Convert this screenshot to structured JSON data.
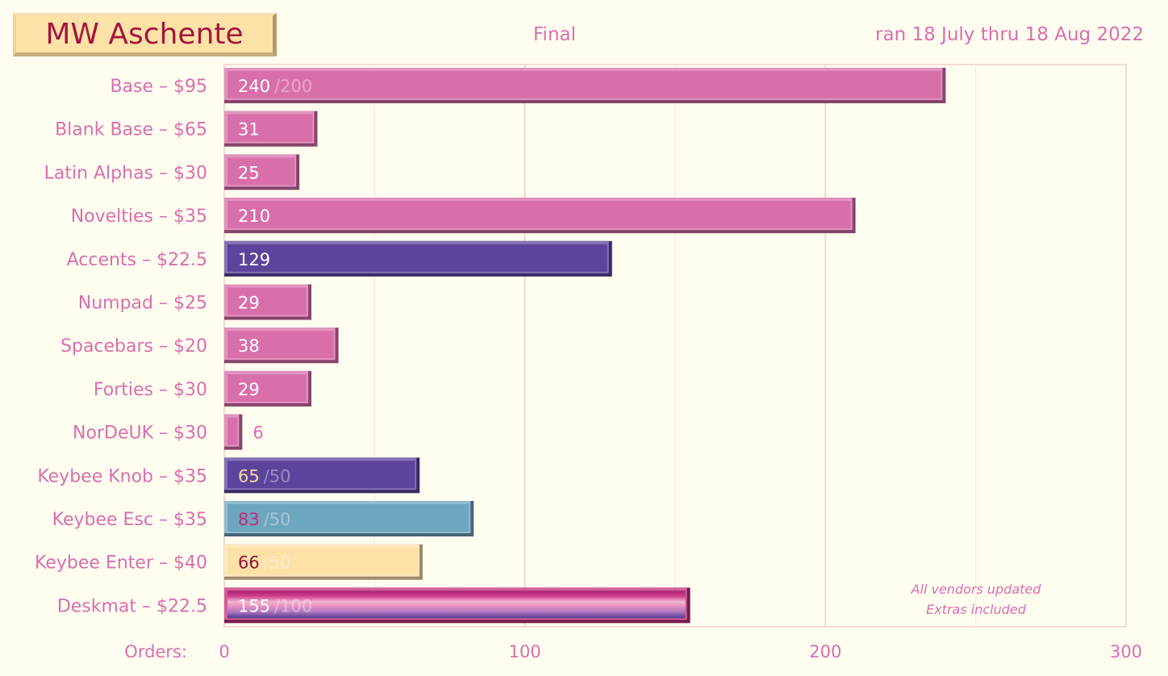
{
  "header": {
    "title": "MW Aschente",
    "status": "Final",
    "run_dates": "ran 18 July thru 18 Aug 2022"
  },
  "chart_data": {
    "type": "bar",
    "orientation": "horizontal",
    "title": "MW Aschente",
    "xlabel": "Orders:",
    "xlim": [
      0,
      300
    ],
    "xticks": [
      0,
      100,
      200,
      300
    ],
    "grid": true,
    "categories": [
      "Base – $95",
      "Blank Base – $65",
      "Latin Alphas – $30",
      "Novelties – $35",
      "Accents – $22.5",
      "Numpad – $25",
      "Spacebars – $20",
      "Forties – $30",
      "NorDeUK – $30",
      "Keybee Knob – $35",
      "Keybee Esc – $35",
      "Keybee Enter – $40",
      "Deskmat – $22.5"
    ],
    "values": [
      240,
      31,
      25,
      210,
      129,
      29,
      38,
      29,
      6,
      65,
      83,
      66,
      155
    ],
    "value_labels": [
      "240",
      "31",
      "25",
      "210",
      "129",
      "29",
      "38",
      "29",
      "6",
      "65",
      "83",
      "66",
      "155"
    ],
    "minimums": [
      "/200",
      "",
      "",
      "",
      "",
      "",
      "",
      "",
      "",
      "/50",
      "/50",
      "/50",
      "/100"
    ],
    "bar_colors": [
      "#d86fab",
      "#d86fab",
      "#d86fab",
      "#d86fab",
      "#5c449c",
      "#d86fab",
      "#d86fab",
      "#d86fab",
      "#d86fab",
      "#5c449c",
      "#6ea5bf",
      "#fde2a8",
      "deskmat-gradient"
    ],
    "value_label_colors": [
      "#ffffff",
      "#ffffff",
      "#ffffff",
      "#ffffff",
      "#ffffff",
      "#ffffff",
      "#ffffff",
      "#ffffff",
      "#d86fad",
      "#f8d9a0",
      "#c2297a",
      "#8c1537",
      "#ffffff"
    ],
    "annotations": [
      "All vendors updated",
      "Extras included"
    ]
  },
  "colors": {
    "accent": "#d86fad",
    "background": "#fffdf0",
    "grid": "#f3dbd5"
  }
}
